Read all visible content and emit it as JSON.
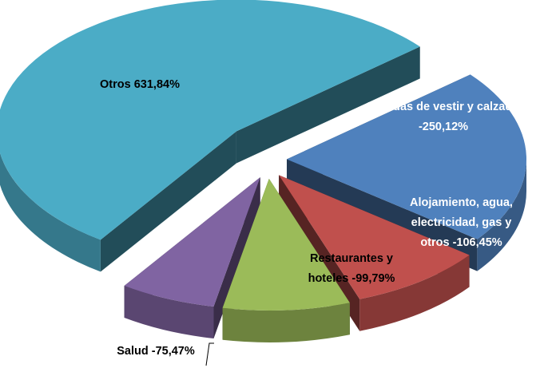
{
  "chart_data": {
    "type": "pie",
    "categories": [
      "Prendas de vestir y calzado",
      "Alojamiento, agua, electricidad, gas y otros",
      "Restaurantes y hoteles",
      "Salud",
      "Otros"
    ],
    "values": [
      -250.12,
      -106.45,
      -99.79,
      -75.47,
      631.84
    ],
    "value_labels": [
      "-250,12%",
      "-106,45%",
      "-99,79%",
      "-75,47%",
      "631,84%"
    ],
    "colors": [
      "#4f81bd",
      "#c0504d",
      "#9bbb59",
      "#8064a2",
      "#4bacc6"
    ]
  }
}
